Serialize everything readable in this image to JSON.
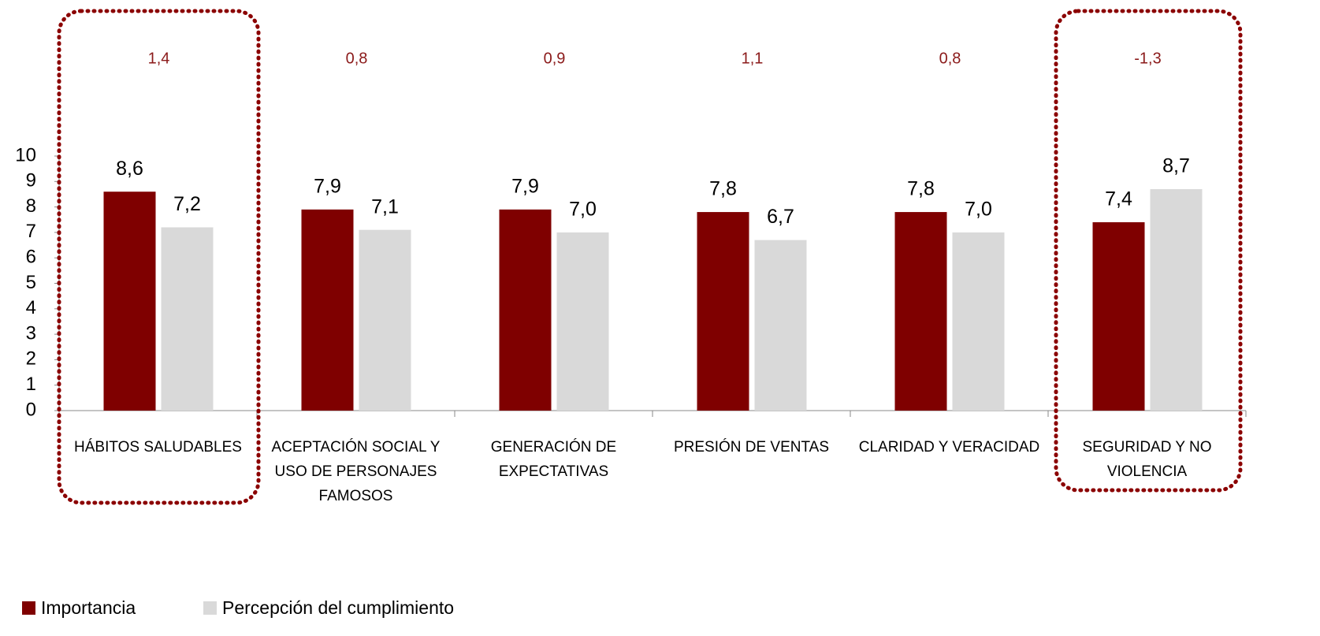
{
  "chart_data": {
    "type": "bar",
    "categories": [
      "HÁBITOS SALUDABLES",
      "ACEPTACIÓN SOCIAL Y USO DE PERSONAJES FAMOSOS",
      "GENERACIÓN DE EXPECTATIVAS",
      "PRESIÓN DE VENTAS",
      "CLARIDAD Y VERACIDAD",
      "SEGURIDAD Y NO VIOLENCIA"
    ],
    "series": [
      {
        "name": "Importancia",
        "color": "#7f0000",
        "values": [
          8.6,
          7.9,
          7.9,
          7.8,
          7.8,
          7.4
        ],
        "value_labels": [
          "8,6",
          "7,9",
          "7,9",
          "7,8",
          "7,8",
          "7,4"
        ]
      },
      {
        "name": "Percepción del cumplimiento",
        "color": "#d9d9d9",
        "values": [
          7.2,
          7.1,
          7.0,
          6.7,
          7.0,
          8.7
        ],
        "value_labels": [
          "7,2",
          "7,1",
          "7,0",
          "6,7",
          "7,0",
          "8,7"
        ]
      }
    ],
    "gap_values": [
      1.4,
      0.8,
      0.9,
      1.1,
      0.8,
      -1.3
    ],
    "gap_labels": [
      "1,4",
      "0,8",
      "0,9",
      "1,1",
      "0,8",
      "-1,3"
    ],
    "gap_color": "#8b1a1a",
    "highlighted_categories": [
      0,
      5
    ],
    "highlight_color": "#8b0000",
    "ylim": [
      0,
      10
    ],
    "yticks": [
      0,
      1,
      2,
      3,
      4,
      5,
      6,
      7,
      8,
      9,
      10
    ],
    "legend": "bottom-left"
  }
}
